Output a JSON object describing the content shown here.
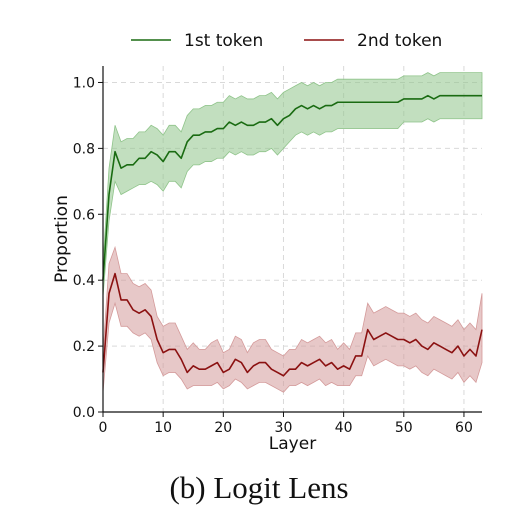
{
  "caption": "(b) Logit Lens",
  "chart_data": {
    "type": "line",
    "xlabel": "Layer",
    "ylabel": "Proportion",
    "xlim": [
      0,
      63
    ],
    "ylim": [
      0,
      1.05
    ],
    "xticks": [
      0,
      10,
      20,
      30,
      40,
      50,
      60
    ],
    "yticks": [
      0.0,
      0.2,
      0.4,
      0.6,
      0.8,
      1.0
    ],
    "ytick_labels": [
      "0.0",
      "0.2",
      "0.4",
      "0.6",
      "0.8",
      "1.0"
    ],
    "grid": true,
    "legend_position": "top, outside",
    "x": [
      0,
      1,
      2,
      3,
      4,
      5,
      6,
      7,
      8,
      9,
      10,
      11,
      12,
      13,
      14,
      15,
      16,
      17,
      18,
      19,
      20,
      21,
      22,
      23,
      24,
      25,
      26,
      27,
      28,
      29,
      30,
      31,
      32,
      33,
      34,
      35,
      36,
      37,
      38,
      39,
      40,
      41,
      42,
      43,
      44,
      45,
      46,
      47,
      48,
      49,
      50,
      51,
      52,
      53,
      54,
      55,
      56,
      57,
      58,
      59,
      60,
      61,
      62,
      63
    ],
    "series": [
      {
        "name": "1st token",
        "color": "#1a6b12",
        "band_color": "#8fc48a",
        "values": [
          0.4,
          0.66,
          0.79,
          0.74,
          0.75,
          0.75,
          0.77,
          0.77,
          0.79,
          0.78,
          0.76,
          0.79,
          0.79,
          0.77,
          0.82,
          0.84,
          0.84,
          0.85,
          0.85,
          0.86,
          0.86,
          0.88,
          0.87,
          0.88,
          0.87,
          0.87,
          0.88,
          0.88,
          0.89,
          0.87,
          0.89,
          0.9,
          0.92,
          0.93,
          0.92,
          0.93,
          0.92,
          0.93,
          0.93,
          0.94,
          0.94,
          0.94,
          0.94,
          0.94,
          0.94,
          0.94,
          0.94,
          0.94,
          0.94,
          0.94,
          0.95,
          0.95,
          0.95,
          0.95,
          0.96,
          0.95,
          0.96,
          0.96,
          0.96,
          0.96,
          0.96,
          0.96,
          0.96,
          0.96
        ],
        "lower": [
          0.35,
          0.58,
          0.7,
          0.66,
          0.67,
          0.68,
          0.69,
          0.69,
          0.7,
          0.69,
          0.67,
          0.7,
          0.7,
          0.68,
          0.73,
          0.75,
          0.75,
          0.76,
          0.76,
          0.77,
          0.77,
          0.79,
          0.78,
          0.79,
          0.78,
          0.78,
          0.79,
          0.79,
          0.8,
          0.78,
          0.8,
          0.82,
          0.84,
          0.85,
          0.84,
          0.85,
          0.84,
          0.85,
          0.85,
          0.86,
          0.86,
          0.86,
          0.86,
          0.86,
          0.86,
          0.86,
          0.86,
          0.86,
          0.86,
          0.86,
          0.88,
          0.88,
          0.88,
          0.88,
          0.89,
          0.88,
          0.89,
          0.89,
          0.89,
          0.89,
          0.89,
          0.89,
          0.89,
          0.89
        ],
        "upper": [
          0.45,
          0.74,
          0.87,
          0.82,
          0.83,
          0.83,
          0.85,
          0.85,
          0.87,
          0.86,
          0.84,
          0.87,
          0.87,
          0.85,
          0.9,
          0.92,
          0.92,
          0.93,
          0.93,
          0.94,
          0.94,
          0.96,
          0.95,
          0.96,
          0.95,
          0.95,
          0.96,
          0.96,
          0.97,
          0.95,
          0.97,
          0.98,
          0.99,
          1.0,
          0.99,
          1.0,
          0.99,
          1.0,
          1.0,
          1.01,
          1.01,
          1.01,
          1.01,
          1.01,
          1.01,
          1.01,
          1.01,
          1.01,
          1.01,
          1.01,
          1.02,
          1.02,
          1.02,
          1.02,
          1.03,
          1.02,
          1.03,
          1.03,
          1.03,
          1.03,
          1.03,
          1.03,
          1.03,
          1.03
        ]
      },
      {
        "name": "2nd token",
        "color": "#8b1111",
        "band_color": "#d49a9a",
        "values": [
          0.12,
          0.36,
          0.42,
          0.34,
          0.34,
          0.31,
          0.3,
          0.31,
          0.29,
          0.22,
          0.18,
          0.19,
          0.19,
          0.16,
          0.12,
          0.14,
          0.13,
          0.13,
          0.14,
          0.15,
          0.12,
          0.13,
          0.16,
          0.15,
          0.12,
          0.14,
          0.15,
          0.15,
          0.13,
          0.12,
          0.11,
          0.13,
          0.13,
          0.15,
          0.14,
          0.15,
          0.16,
          0.14,
          0.15,
          0.13,
          0.14,
          0.13,
          0.17,
          0.17,
          0.25,
          0.22,
          0.23,
          0.24,
          0.23,
          0.22,
          0.22,
          0.21,
          0.22,
          0.2,
          0.19,
          0.21,
          0.2,
          0.19,
          0.18,
          0.2,
          0.17,
          0.19,
          0.17,
          0.25
        ],
        "lower": [
          0.06,
          0.27,
          0.33,
          0.26,
          0.26,
          0.24,
          0.23,
          0.24,
          0.22,
          0.15,
          0.11,
          0.12,
          0.12,
          0.1,
          0.07,
          0.08,
          0.08,
          0.08,
          0.08,
          0.09,
          0.07,
          0.08,
          0.1,
          0.09,
          0.07,
          0.08,
          0.09,
          0.09,
          0.08,
          0.07,
          0.06,
          0.08,
          0.08,
          0.09,
          0.08,
          0.09,
          0.1,
          0.08,
          0.09,
          0.08,
          0.08,
          0.08,
          0.11,
          0.11,
          0.17,
          0.14,
          0.15,
          0.16,
          0.15,
          0.14,
          0.14,
          0.13,
          0.14,
          0.12,
          0.11,
          0.13,
          0.12,
          0.11,
          0.1,
          0.12,
          0.09,
          0.11,
          0.09,
          0.15
        ],
        "upper": [
          0.18,
          0.45,
          0.5,
          0.42,
          0.42,
          0.39,
          0.38,
          0.39,
          0.37,
          0.29,
          0.26,
          0.27,
          0.27,
          0.23,
          0.19,
          0.21,
          0.19,
          0.19,
          0.21,
          0.22,
          0.18,
          0.19,
          0.23,
          0.22,
          0.18,
          0.21,
          0.22,
          0.22,
          0.19,
          0.18,
          0.17,
          0.19,
          0.19,
          0.22,
          0.21,
          0.22,
          0.23,
          0.21,
          0.22,
          0.19,
          0.21,
          0.19,
          0.24,
          0.24,
          0.33,
          0.3,
          0.31,
          0.32,
          0.31,
          0.3,
          0.3,
          0.29,
          0.3,
          0.28,
          0.27,
          0.29,
          0.28,
          0.27,
          0.26,
          0.28,
          0.25,
          0.27,
          0.25,
          0.36
        ]
      }
    ]
  }
}
